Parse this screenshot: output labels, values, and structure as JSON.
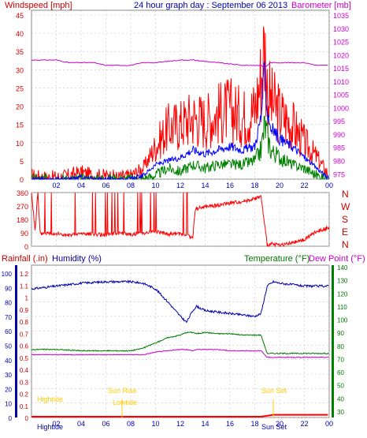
{
  "header": {
    "left": "Windspeed [mph]",
    "center": "24 hour graph day : September 06 2013",
    "right": "Barometer [mb]"
  },
  "panel2": {
    "right_letters": [
      "N",
      "W",
      "S",
      "E",
      "N"
    ]
  },
  "panel3": {
    "left1": "Rainfall (.in)",
    "left2": "Humidity (%)",
    "right1": "Temperature (°F)",
    "right2": "Dew Point (°F)"
  },
  "annotations": {
    "hightide_1": "Hightide",
    "hightide_2": "Hightide",
    "lowtide": "Lowtide",
    "sunrise": "Sun Rise",
    "sunset": "Sun Set",
    "sunset_axis": "Sun Set"
  },
  "x_ticks": [
    "02",
    "04",
    "06",
    "08",
    "10",
    "12",
    "14",
    "16",
    "18",
    "20",
    "22",
    "00"
  ],
  "colors": {
    "wind": "#ff0000",
    "gust_avg": "#0000ff",
    "wind_green": "#008000",
    "barometer": "#cc00cc",
    "humidity": "#0000aa",
    "temperature": "#007700",
    "dewpoint": "#cc00cc",
    "rain": "#ff0000",
    "annotation": "#ffcc00",
    "axis_left_bar": "#0000aa",
    "axis_right_bar": "#008000"
  },
  "chart_data": [
    {
      "type": "line",
      "name": "windspeed-barometer",
      "yleft_ticks": [
        0,
        5,
        10,
        15,
        20,
        25,
        30,
        35,
        40,
        45
      ],
      "yright_ticks": [
        975,
        980,
        985,
        990,
        995,
        1000,
        1005,
        1010,
        1015,
        1020,
        1025,
        1030,
        1035
      ],
      "ylim_left": [
        0,
        45
      ],
      "ylim_right": [
        973,
        1035
      ],
      "x_hours": [
        0,
        1,
        2,
        3,
        4,
        5,
        6,
        7,
        8,
        9,
        10,
        11,
        12,
        13,
        14,
        15,
        16,
        17,
        18,
        18.5,
        18.8,
        19,
        19.3,
        19.6,
        20,
        21,
        22,
        23,
        24
      ],
      "series": [
        {
          "key": "wind_max",
          "values": [
            1,
            0.5,
            0.5,
            1,
            2,
            1,
            1,
            0.5,
            1,
            3,
            9,
            14,
            15,
            17,
            16,
            18,
            19,
            17,
            19,
            28,
            37,
            25,
            21,
            20,
            18,
            15,
            10,
            6,
            1
          ]
        },
        {
          "key": "wind_avg",
          "values": [
            0,
            0,
            0,
            0,
            0.5,
            0,
            0,
            0,
            0,
            1,
            4,
            5,
            6,
            8,
            7,
            8,
            9,
            8,
            9,
            17,
            30,
            19,
            14,
            13,
            11,
            9,
            6,
            3,
            0
          ]
        },
        {
          "key": "wind_low",
          "values": [
            0,
            0,
            0,
            0,
            0,
            0,
            0,
            0,
            0,
            0,
            1,
            3,
            2,
            4,
            3,
            4,
            4,
            4,
            5,
            8,
            15,
            12,
            8,
            7,
            6,
            4,
            3,
            1,
            0
          ]
        },
        {
          "key": "barometer",
          "values": [
            1018,
            1018,
            1018,
            1017,
            1017,
            1017,
            1016,
            1016,
            1016,
            1017,
            1017,
            1017.5,
            1018,
            1018,
            1017.5,
            1017,
            1016.5,
            1016,
            1016,
            1016,
            1015,
            1016,
            1017,
            1017,
            1017,
            1017,
            1017,
            1016,
            1016
          ]
        }
      ]
    },
    {
      "type": "line",
      "name": "wind-direction",
      "y_ticks": [
        0,
        90,
        180,
        270,
        360
      ],
      "ylim": [
        0,
        360
      ],
      "x_hours": [
        0,
        0.3,
        0.5,
        0.7,
        1,
        2,
        3,
        4,
        5,
        6,
        7,
        8,
        9,
        10,
        11,
        12,
        12.5,
        13,
        13.2,
        14,
        15,
        16,
        17,
        18,
        18.5,
        19,
        19.5,
        20,
        21,
        22,
        23,
        24
      ],
      "series": [
        {
          "key": "direction",
          "values": [
            360,
            100,
            360,
            80,
            90,
            85,
            70,
            85,
            80,
            75,
            90,
            80,
            90,
            100,
            80,
            85,
            75,
            55,
            250,
            265,
            275,
            290,
            300,
            320,
            335,
            10,
            15,
            8,
            20,
            45,
            100,
            125
          ]
        }
      ]
    },
    {
      "type": "line",
      "name": "humidity-temperature-dewpoint-rain",
      "yleft_ticks": [
        0,
        10,
        20,
        30,
        40,
        50,
        60,
        70,
        80,
        90,
        100
      ],
      "yleft2_ticks": [
        0,
        0.1,
        0.2,
        0.3,
        0.4,
        0.5,
        0.6,
        0.7,
        0.8,
        0.9,
        1,
        1.1,
        1.2
      ],
      "yright_ticks": [
        30,
        40,
        50,
        60,
        70,
        80,
        90,
        100,
        110,
        120,
        130,
        140
      ],
      "ylim_humidity": [
        0,
        100
      ],
      "ylim_temp": [
        30,
        140
      ],
      "x_hours": [
        0,
        2,
        4,
        6,
        8,
        9,
        10,
        11,
        12,
        12.5,
        13,
        13.3,
        14,
        15,
        16,
        17,
        18,
        18.5,
        19,
        19.5,
        20,
        21,
        22,
        24
      ],
      "series": [
        {
          "key": "humidity",
          "values": [
            89,
            91,
            93,
            94,
            94,
            93,
            89,
            80,
            70,
            66,
            74,
            77,
            74,
            73,
            72,
            71,
            70,
            72,
            91,
            94,
            93,
            92,
            91,
            91
          ]
        },
        {
          "key": "temperature",
          "values": [
            77,
            77,
            76,
            76,
            76,
            78,
            82,
            86,
            88,
            90,
            90,
            89,
            90,
            89,
            89,
            88,
            88,
            88,
            74,
            74,
            74,
            74,
            74,
            74
          ]
        },
        {
          "key": "dewpoint",
          "values": [
            73,
            73,
            73,
            73,
            73,
            73,
            75,
            76,
            77,
            77,
            76,
            77,
            77,
            77,
            76,
            76,
            76,
            76,
            71,
            71,
            71,
            71,
            71,
            71
          ]
        },
        {
          "key": "rain",
          "values": [
            0,
            0,
            0,
            0,
            0,
            0,
            0,
            0,
            0,
            0,
            0,
            0,
            0,
            0,
            0,
            0,
            0,
            0,
            0.01,
            0.02,
            0.02,
            0.02,
            0.02,
            0.02
          ]
        }
      ]
    }
  ]
}
